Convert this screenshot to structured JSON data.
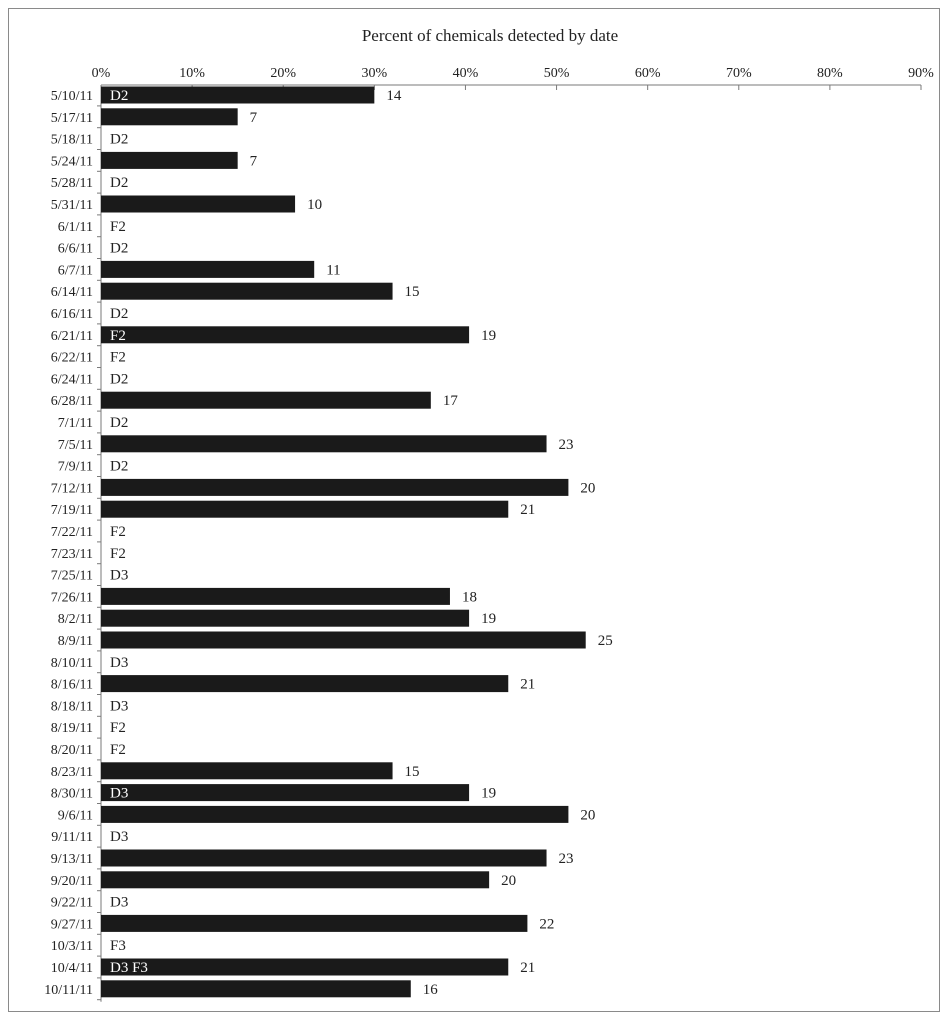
{
  "chart_data": {
    "type": "bar",
    "orientation": "horizontal",
    "title": "Percent of chemicals detected by date",
    "xlabel": "",
    "ylabel": "",
    "xlim": [
      0,
      90
    ],
    "x_ticks": [
      "0%",
      "10%",
      "20%",
      "30%",
      "40%",
      "50%",
      "60%",
      "70%",
      "80%",
      "90%"
    ],
    "grid": false,
    "legend": "none",
    "bar_color": "#1a1a1a",
    "rows": [
      {
        "date": "5/10/11",
        "percent": 30,
        "count": "14",
        "note": "D2"
      },
      {
        "date": "5/17/11",
        "percent": 15,
        "count": "7",
        "note": ""
      },
      {
        "date": "5/18/11",
        "percent": 0,
        "count": "",
        "note": "D2"
      },
      {
        "date": "5/24/11",
        "percent": 15,
        "count": "7",
        "note": ""
      },
      {
        "date": "5/28/11",
        "percent": 0,
        "count": "",
        "note": "D2"
      },
      {
        "date": "5/31/11",
        "percent": 21.3,
        "count": "10",
        "note": ""
      },
      {
        "date": "6/1/11",
        "percent": 0,
        "count": "",
        "note": "F2"
      },
      {
        "date": "6/6/11",
        "percent": 0,
        "count": "",
        "note": "D2"
      },
      {
        "date": "6/7/11",
        "percent": 23.4,
        "count": "11",
        "note": ""
      },
      {
        "date": "6/14/11",
        "percent": 32,
        "count": "15",
        "note": ""
      },
      {
        "date": "6/16/11",
        "percent": 0,
        "count": "",
        "note": "D2"
      },
      {
        "date": "6/21/11",
        "percent": 40.4,
        "count": "19",
        "note": "F2"
      },
      {
        "date": "6/22/11",
        "percent": 0,
        "count": "",
        "note": "F2"
      },
      {
        "date": "6/24/11",
        "percent": 0,
        "count": "",
        "note": "D2"
      },
      {
        "date": "6/28/11",
        "percent": 36.2,
        "count": "17",
        "note": ""
      },
      {
        "date": "7/1/11",
        "percent": 0,
        "count": "",
        "note": "D2"
      },
      {
        "date": "7/5/11",
        "percent": 48.9,
        "count": "23",
        "note": ""
      },
      {
        "date": "7/9/11",
        "percent": 0,
        "count": "",
        "note": "D2"
      },
      {
        "date": "7/12/11",
        "percent": 51.3,
        "count": "20",
        "note": ""
      },
      {
        "date": "7/19/11",
        "percent": 44.7,
        "count": "21",
        "note": ""
      },
      {
        "date": "7/22/11",
        "percent": 0,
        "count": "",
        "note": "F2"
      },
      {
        "date": "7/23/11",
        "percent": 0,
        "count": "",
        "note": "F2"
      },
      {
        "date": "7/25/11",
        "percent": 0,
        "count": "",
        "note": "D3"
      },
      {
        "date": "7/26/11",
        "percent": 38.3,
        "count": "18",
        "note": ""
      },
      {
        "date": "8/2/11",
        "percent": 40.4,
        "count": "19",
        "note": ""
      },
      {
        "date": "8/9/11",
        "percent": 53.2,
        "count": "25",
        "note": ""
      },
      {
        "date": "8/10/11",
        "percent": 0,
        "count": "",
        "note": "D3"
      },
      {
        "date": "8/16/11",
        "percent": 44.7,
        "count": "21",
        "note": ""
      },
      {
        "date": "8/18/11",
        "percent": 0,
        "count": "",
        "note": "D3"
      },
      {
        "date": "8/19/11",
        "percent": 0,
        "count": "",
        "note": "F2"
      },
      {
        "date": "8/20/11",
        "percent": 0,
        "count": "",
        "note": "F2"
      },
      {
        "date": "8/23/11",
        "percent": 32,
        "count": "15",
        "note": ""
      },
      {
        "date": "8/30/11",
        "percent": 40.4,
        "count": "19",
        "note": "D3"
      },
      {
        "date": "9/6/11",
        "percent": 51.3,
        "count": "20",
        "note": ""
      },
      {
        "date": "9/11/11",
        "percent": 0,
        "count": "",
        "note": "D3"
      },
      {
        "date": "9/13/11",
        "percent": 48.9,
        "count": "23",
        "note": ""
      },
      {
        "date": "9/20/11",
        "percent": 42.6,
        "count": "20",
        "note": ""
      },
      {
        "date": "9/22/11",
        "percent": 0,
        "count": "",
        "note": "D3"
      },
      {
        "date": "9/27/11",
        "percent": 46.8,
        "count": "22",
        "note": ""
      },
      {
        "date": "10/3/11",
        "percent": 0,
        "count": "",
        "note": "F3"
      },
      {
        "date": "10/4/11",
        "percent": 44.7,
        "count": "21",
        "note": "D3 F3"
      },
      {
        "date": "10/11/11",
        "percent": 34,
        "count": "16",
        "note": ""
      }
    ]
  }
}
